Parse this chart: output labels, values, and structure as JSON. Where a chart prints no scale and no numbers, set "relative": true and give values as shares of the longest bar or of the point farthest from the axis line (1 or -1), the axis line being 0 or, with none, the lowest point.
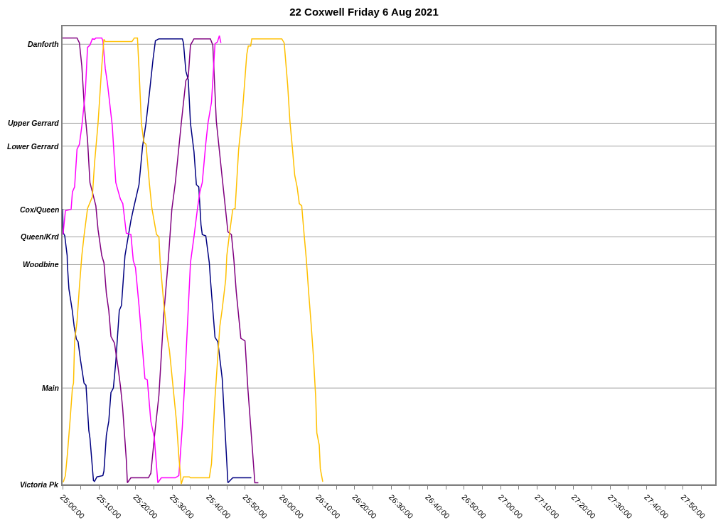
{
  "chart_data": {
    "type": "line",
    "title": "22 Coxwell Friday 6 Aug 2021",
    "relative": true,
    "xlim": [
      25,
      27.98
    ],
    "xticks": [
      {
        "value": 25,
        "label": "25:00:00"
      },
      {
        "value": 25.0833,
        "label": null
      },
      {
        "value": 25.1667,
        "label": "25:10:00"
      },
      {
        "value": 25.25,
        "label": null
      },
      {
        "value": 25.3333,
        "label": "25:20:00"
      },
      {
        "value": 25.4167,
        "label": null
      },
      {
        "value": 25.5,
        "label": "25:30:00"
      },
      {
        "value": 25.5833,
        "label": null
      },
      {
        "value": 25.6667,
        "label": "25:40:00"
      },
      {
        "value": 25.75,
        "label": null
      },
      {
        "value": 25.8333,
        "label": "25:50:00"
      },
      {
        "value": 25.9167,
        "label": null
      },
      {
        "value": 26,
        "label": "26:00:00"
      },
      {
        "value": 26.0833,
        "label": null
      },
      {
        "value": 26.1667,
        "label": "26:10:00"
      },
      {
        "value": 26.25,
        "label": null
      },
      {
        "value": 26.3333,
        "label": "26:20:00"
      },
      {
        "value": 26.4167,
        "label": null
      },
      {
        "value": 26.5,
        "label": "26:30:00"
      },
      {
        "value": 26.5833,
        "label": null
      },
      {
        "value": 26.6667,
        "label": "26:40:00"
      },
      {
        "value": 26.75,
        "label": null
      },
      {
        "value": 26.8333,
        "label": "26:50:00"
      },
      {
        "value": 26.9167,
        "label": null
      },
      {
        "value": 27,
        "label": "27:00:00"
      },
      {
        "value": 27.0833,
        "label": null
      },
      {
        "value": 27.1667,
        "label": "27:10:00"
      },
      {
        "value": 27.25,
        "label": null
      },
      {
        "value": 27.3333,
        "label": "27:20:00"
      },
      {
        "value": 27.4167,
        "label": null
      },
      {
        "value": 27.5,
        "label": "27:30:00"
      },
      {
        "value": 27.5833,
        "label": null
      },
      {
        "value": 27.6667,
        "label": "27:40:00"
      },
      {
        "value": 27.75,
        "label": null
      },
      {
        "value": 27.8333,
        "label": "27:50:00"
      },
      {
        "value": 27.9167,
        "label": null
      }
    ],
    "ref_lines": [
      {
        "axis": "y",
        "value": 0.981,
        "label": "Danforth",
        "color": "#a0a0a0"
      },
      {
        "axis": "y",
        "value": 0.805,
        "label": "Upper Gerrard",
        "color": "#a0a0a0"
      },
      {
        "axis": "y",
        "value": 0.754,
        "label": "Lower Gerrard",
        "color": "#a0a0a0"
      },
      {
        "axis": "y",
        "value": 0.613,
        "label": "Cox/Queen",
        "color": "#a0a0a0"
      },
      {
        "axis": "y",
        "value": 0.552,
        "label": "Queen/Krd",
        "color": "#a0a0a0"
      },
      {
        "axis": "y",
        "value": 0.49,
        "label": "Woodbine",
        "color": "#a0a0a0"
      },
      {
        "axis": "y",
        "value": 0.215,
        "label": "Main",
        "color": "#a0a0a0"
      },
      {
        "axis": "y",
        "value": 0,
        "label": "Victoria Pk",
        "color": "#a0a0a0"
      }
    ],
    "series": [
      {
        "color": "#000080",
        "x": [
          25.0,
          25.003,
          25.01,
          25.021,
          25.022,
          25.029,
          25.044,
          25.053,
          25.063,
          25.071,
          25.082,
          25.098,
          25.107,
          25.12,
          25.125,
          25.141,
          25.146,
          25.157,
          25.184,
          25.189,
          25.2,
          25.211,
          25.221,
          25.232,
          25.243,
          25.259,
          25.269,
          25.285,
          25.312,
          25.323,
          25.349,
          25.365,
          25.381,
          25.397,
          25.413,
          25.424,
          25.44,
          25.547,
          25.552,
          25.563,
          25.574,
          25.584,
          25.6,
          25.611,
          25.622,
          25.632,
          25.638,
          25.654,
          25.67,
          25.675,
          25.696,
          25.709,
          25.729,
          25.755,
          25.777,
          25.862
        ],
        "values": [
          0.614,
          0.561,
          0.554,
          0.51,
          0.489,
          0.436,
          0.389,
          0.352,
          0.324,
          0.318,
          0.277,
          0.226,
          0.221,
          0.12,
          0.104,
          0.009,
          0.007,
          0.017,
          0.02,
          0.03,
          0.11,
          0.141,
          0.205,
          0.215,
          0.273,
          0.388,
          0.399,
          0.51,
          0.588,
          0.613,
          0.668,
          0.752,
          0.805,
          0.874,
          0.947,
          0.989,
          0.993,
          0.993,
          0.984,
          0.921,
          0.902,
          0.805,
          0.742,
          0.668,
          0.663,
          0.579,
          0.557,
          0.554,
          0.494,
          0.458,
          0.328,
          0.318,
          0.236,
          0.004,
          0.015,
          0.015
        ]
      },
      {
        "color": "#800080",
        "x": [
          25.0,
          25.066,
          25.077,
          25.088,
          25.098,
          25.114,
          25.125,
          25.136,
          25.152,
          25.162,
          25.179,
          25.189,
          25.2,
          25.211,
          25.221,
          25.237,
          25.253,
          25.264,
          25.274,
          25.291,
          25.296,
          25.312,
          25.392,
          25.403,
          25.419,
          25.44,
          25.462,
          25.483,
          25.499,
          25.515,
          25.542,
          25.563,
          25.574,
          25.584,
          25.6,
          25.675,
          25.686,
          25.702,
          25.729,
          25.755,
          25.771,
          25.782,
          25.793,
          25.814,
          25.833,
          25.846,
          25.878,
          25.894
        ],
        "values": [
          0.995,
          0.995,
          0.984,
          0.932,
          0.852,
          0.768,
          0.673,
          0.652,
          0.621,
          0.568,
          0.51,
          0.494,
          0.426,
          0.388,
          0.33,
          0.315,
          0.262,
          0.22,
          0.173,
          0.056,
          0.004,
          0.015,
          0.015,
          0.025,
          0.104,
          0.199,
          0.378,
          0.502,
          0.613,
          0.673,
          0.805,
          0.9,
          0.908,
          0.979,
          0.993,
          0.993,
          0.979,
          0.81,
          0.683,
          0.563,
          0.557,
          0.502,
          0.43,
          0.326,
          0.32,
          0.215,
          0.004,
          0.004
        ]
      },
      {
        "color": "#ff00ff",
        "x": [
          25.002,
          25.013,
          25.039,
          25.045,
          25.055,
          25.066,
          25.077,
          25.088,
          25.104,
          25.114,
          25.125,
          25.136,
          25.146,
          25.152,
          25.179,
          25.184,
          25.195,
          25.205,
          25.227,
          25.243,
          25.264,
          25.275,
          25.291,
          25.312,
          25.323,
          25.333,
          25.349,
          25.376,
          25.387,
          25.403,
          25.419,
          25.435,
          25.451,
          25.515,
          25.531,
          25.547,
          25.558,
          25.584,
          25.6,
          25.616,
          25.627,
          25.638,
          25.654,
          25.664,
          25.68,
          25.696,
          25.707,
          25.716,
          25.723
        ],
        "values": [
          0.557,
          0.61,
          0.613,
          0.652,
          0.663,
          0.747,
          0.758,
          0.799,
          0.874,
          0.974,
          0.979,
          0.993,
          0.992,
          0.995,
          0.995,
          0.989,
          0.927,
          0.894,
          0.799,
          0.673,
          0.636,
          0.626,
          0.56,
          0.557,
          0.499,
          0.483,
          0.399,
          0.236,
          0.233,
          0.141,
          0.104,
          0.004,
          0.015,
          0.015,
          0.02,
          0.13,
          0.23,
          0.494,
          0.552,
          0.615,
          0.652,
          0.673,
          0.76,
          0.805,
          0.852,
          0.982,
          0.986,
          1.0,
          0.984
        ]
      },
      {
        "color": "#ffc000",
        "x": [
          25.003,
          25.013,
          25.023,
          25.034,
          25.045,
          25.05,
          25.055,
          25.066,
          25.077,
          25.088,
          25.098,
          25.114,
          25.136,
          25.146,
          25.162,
          25.179,
          25.189,
          25.195,
          25.317,
          25.328,
          25.342,
          25.349,
          25.36,
          25.371,
          25.381,
          25.397,
          25.408,
          25.429,
          25.44,
          25.446,
          25.462,
          25.478,
          25.488,
          25.504,
          25.52,
          25.531,
          25.542,
          25.552,
          25.579,
          25.584,
          25.67,
          25.68,
          25.696,
          25.718,
          25.729,
          25.745,
          25.75,
          25.761,
          25.777,
          25.788,
          25.804,
          25.82,
          25.841,
          25.848,
          25.859,
          25.864,
          26.001,
          26.012,
          26.028,
          26.038,
          26.049,
          26.06,
          26.071,
          26.081,
          26.092,
          26.103,
          26.113,
          26.124,
          26.135,
          26.145,
          26.156,
          26.161,
          26.172,
          26.177,
          26.188
        ],
        "values": [
          0.005,
          0.02,
          0.073,
          0.141,
          0.215,
          0.226,
          0.32,
          0.363,
          0.441,
          0.51,
          0.554,
          0.615,
          0.641,
          0.716,
          0.805,
          0.932,
          0.992,
          0.987,
          0.987,
          0.995,
          0.995,
          0.927,
          0.805,
          0.763,
          0.758,
          0.668,
          0.615,
          0.557,
          0.552,
          0.494,
          0.404,
          0.33,
          0.299,
          0.22,
          0.141,
          0.062,
          0.001,
          0.017,
          0.017,
          0.015,
          0.015,
          0.046,
          0.193,
          0.352,
          0.391,
          0.457,
          0.51,
          0.554,
          0.613,
          0.615,
          0.747,
          0.821,
          0.958,
          0.977,
          0.977,
          0.993,
          0.993,
          0.984,
          0.889,
          0.81,
          0.752,
          0.689,
          0.663,
          0.626,
          0.621,
          0.557,
          0.502,
          0.426,
          0.357,
          0.288,
          0.193,
          0.115,
          0.088,
          0.035,
          0.006
        ]
      }
    ]
  }
}
